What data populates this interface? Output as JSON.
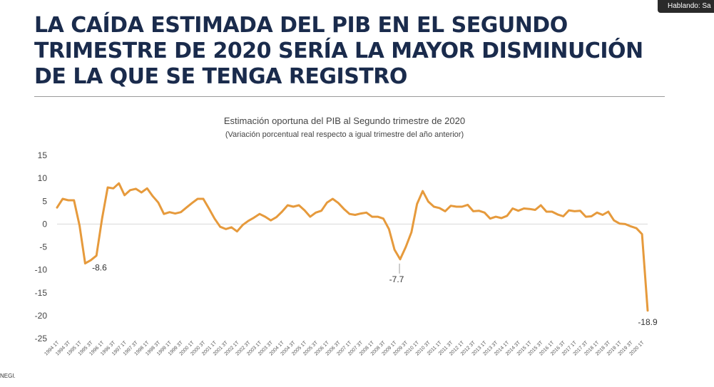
{
  "slide": {
    "title": "LA CAÍDA ESTIMADA DEL PIB EN EL SEGUNDO TRIMESTRE DE 2020 SERÍA LA MAYOR DISMINUCIÓN DE LA QUE SE TENGA REGISTRO",
    "status_indicator": "Hablando: Sa",
    "source_fragment": "NEGI."
  },
  "colors": {
    "line": "#e69a3c",
    "title": "#1a2b4c",
    "zero_line": "#d9d9d9"
  },
  "chart_data": {
    "type": "line",
    "title": "Estimación oportuna del PIB al Segundo trimestre de 2020",
    "subtitle": "(Variación porcentual real respecto a igual trimestre del año anterior)",
    "ylim": [
      -25,
      15
    ],
    "yticks": [
      15,
      10,
      5,
      0,
      -5,
      -10,
      -15,
      -20,
      -25
    ],
    "x_tick_labels": [
      "1994 1T",
      "1994 3T",
      "1995 1T",
      "1995 3T",
      "1996 1T",
      "1996 3T",
      "1997 1T",
      "1997 3T",
      "1998 1T",
      "1998 3T",
      "1999 1T",
      "1999 3T",
      "2000 1T",
      "2000 3T",
      "2001 1T",
      "2001 3T",
      "2002 1T",
      "2002 3T",
      "2003 1T",
      "2003 3T",
      "2004 1T",
      "2004 3T",
      "2005 1T",
      "2005 3T",
      "2006 1T",
      "2006 3T",
      "2007 1T",
      "2007 3T",
      "2008 1T",
      "2008 3T",
      "2009 1T",
      "2009 3T",
      "2010 1T",
      "2010 3T",
      "2011 1T",
      "2011 3T",
      "2012 1T",
      "2012 3T",
      "2013 1T",
      "2013 3T",
      "2014 1T",
      "2014 3T",
      "2015 1T",
      "2015 3T",
      "2016 1T",
      "2016 3T",
      "2017 1T",
      "2017 3T",
      "2018 1T",
      "2018 3T",
      "2019 1T",
      "2019 3T",
      "2020 1T"
    ],
    "series": [
      {
        "values": [
          3.6,
          5.5,
          5.2,
          5.2,
          -0.3,
          -8.6,
          -7.9,
          -6.9,
          1.2,
          8.0,
          7.8,
          8.9,
          6.3,
          7.4,
          7.7,
          6.9,
          7.8,
          6.1,
          4.7,
          2.2,
          2.6,
          2.3,
          2.6,
          3.6,
          4.6,
          5.5,
          5.5,
          3.4,
          1.2,
          -0.6,
          -1.1,
          -0.7,
          -1.6,
          -0.2,
          0.7,
          1.4,
          2.2,
          1.6,
          0.8,
          1.5,
          2.7,
          4.1,
          3.8,
          4.1,
          3.0,
          1.6,
          2.5,
          2.9,
          4.7,
          5.5,
          4.6,
          3.3,
          2.2,
          2.0,
          2.3,
          2.5,
          1.6,
          1.6,
          1.2,
          -1.1,
          -5.6,
          -7.7,
          -5.0,
          -1.8,
          4.4,
          7.2,
          4.9,
          3.8,
          3.5,
          2.8,
          4.0,
          3.8,
          3.8,
          4.2,
          2.8,
          2.9,
          2.5,
          1.2,
          1.6,
          1.3,
          1.8,
          3.4,
          2.9,
          3.4,
          3.3,
          3.1,
          4.1,
          2.7,
          2.7,
          2.1,
          1.7,
          3.0,
          2.8,
          2.9,
          1.6,
          1.7,
          2.5,
          2.0,
          2.7,
          0.8,
          0.1,
          0.0,
          -0.5,
          -0.9,
          -2.2,
          -18.9
        ]
      }
    ],
    "annotations": [
      {
        "label": "-8.6",
        "index": 5
      },
      {
        "label": "-7.7",
        "index": 61
      },
      {
        "label": "-18.9",
        "index": 105
      }
    ]
  }
}
